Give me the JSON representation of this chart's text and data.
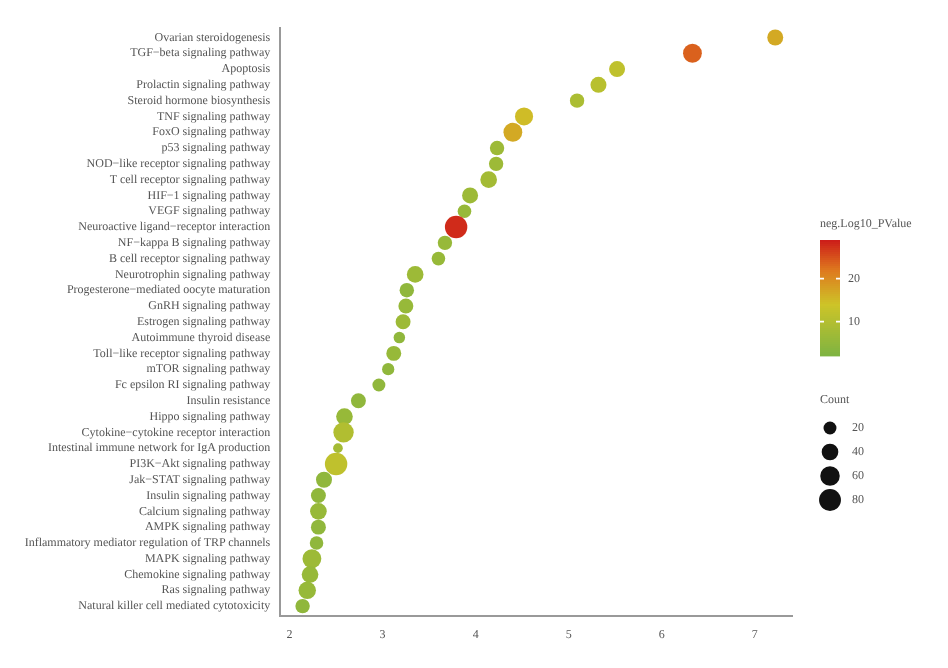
{
  "chart_data": {
    "type": "bubble",
    "orientation": "horizontal",
    "clabel": "neg.Log10_PValue",
    "legend_title": "Count",
    "categories": [
      "Ovarian steroidogenesis",
      "TGF−beta signaling pathway",
      "Apoptosis",
      "Prolactin signaling pathway",
      "Steroid hormone biosynthesis",
      "TNF signaling pathway",
      "FoxO signaling pathway",
      "p53 signaling pathway",
      "NOD−like receptor signaling pathway",
      "T cell receptor signaling pathway",
      "HIF−1 signaling pathway",
      "VEGF signaling pathway",
      "Neuroactive ligand−receptor interaction",
      "NF−kappa B signaling pathway",
      "B cell receptor signaling pathway",
      "Neurotrophin signaling pathway",
      "Progesterone−mediated oocyte maturation",
      "GnRH signaling pathway",
      "Estrogen signaling pathway",
      "Autoimmune thyroid disease",
      "Toll−like receptor signaling pathway",
      "mTOR signaling pathway",
      "Fc epsilon RI signaling pathway",
      "Insulin resistance",
      "Hippo signaling pathway",
      "Cytokine−cytokine receptor interaction",
      "Intestinal immune network for IgA production",
      "PI3K−Akt signaling pathway",
      "Jak−STAT signaling pathway",
      "Insulin signaling pathway",
      "Calcium signaling pathway",
      "AMPK signaling pathway",
      "Inflammatory mediator regulation of TRP channels",
      "MAPK signaling pathway",
      "Chemokine signaling pathway",
      "Ras signaling pathway",
      "Natural killer cell mediated cytotoxicity"
    ],
    "values": [
      7.22,
      6.33,
      5.52,
      5.32,
      5.09,
      4.52,
      4.4,
      4.23,
      4.22,
      4.14,
      3.94,
      3.88,
      3.79,
      3.67,
      3.6,
      3.35,
      3.26,
      3.25,
      3.22,
      3.18,
      3.12,
      3.06,
      2.96,
      2.74,
      2.59,
      2.58,
      2.52,
      2.5,
      2.37,
      2.31,
      2.31,
      2.31,
      2.29,
      2.24,
      2.22,
      2.19,
      2.14
    ],
    "sizes": [
      36,
      55,
      36,
      36,
      27,
      50,
      55,
      27,
      27,
      40,
      36,
      23,
      85,
      27,
      23,
      40,
      27,
      30,
      30,
      14,
      30,
      17,
      20,
      30,
      40,
      67,
      8,
      85,
      36,
      30,
      40,
      30,
      23,
      55,
      40,
      45,
      27
    ],
    "cvalues": [
      17,
      24,
      12,
      11,
      9,
      15,
      17,
      7,
      7,
      8,
      7,
      6,
      28,
      6,
      6,
      7,
      5,
      6,
      7,
      5,
      6,
      5,
      5,
      5,
      6,
      10,
      8,
      12,
      5,
      5,
      6,
      5,
      5,
      7,
      6,
      6,
      5
    ],
    "size_legend": [
      20,
      40,
      60,
      80
    ],
    "clim": [
      2,
      29
    ],
    "cticks": [
      10,
      20
    ],
    "xlim": [
      1.9,
      7.4
    ],
    "xticks": [
      2,
      3,
      4,
      5,
      6,
      7
    ],
    "grid": false
  }
}
